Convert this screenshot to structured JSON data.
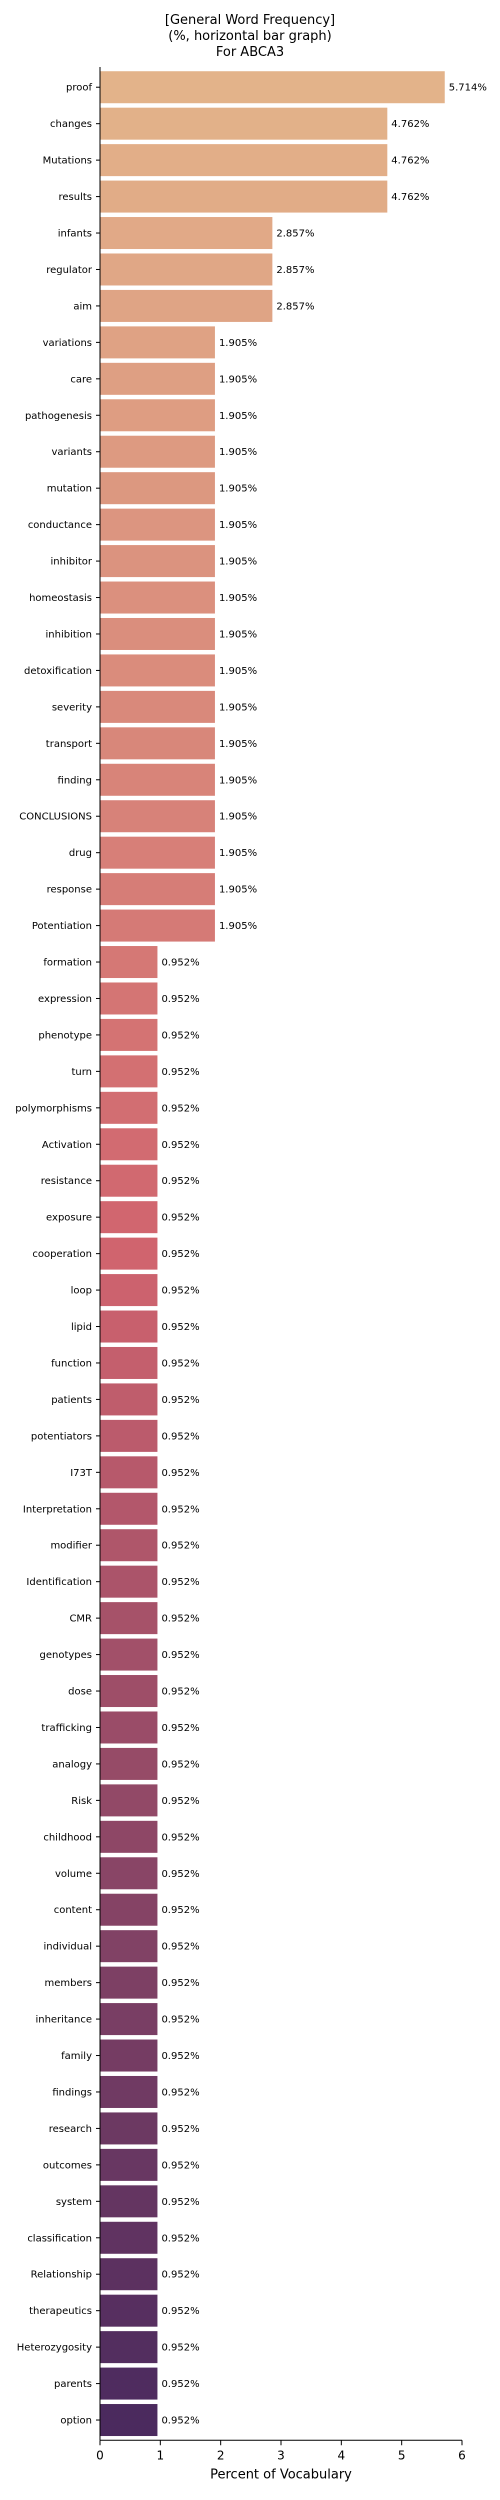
{
  "chart_data": {
    "type": "bar",
    "orientation": "horizontal",
    "title_lines": [
      "[General Word Frequency]",
      "(%, horizontal bar graph)",
      "For ABCA3"
    ],
    "xlabel": "Percent of Vocabulary",
    "ylabel": "",
    "xlim": [
      0,
      6
    ],
    "xticks": [
      0,
      1,
      2,
      3,
      4,
      5,
      6
    ],
    "grid": false,
    "value_label_suffix": "%",
    "colors": {
      "start": "#e3b38a",
      "end": "#4b2a5e"
    },
    "categories": [
      "proof",
      "changes",
      "Mutations",
      "results",
      "infants",
      "regulator",
      "aim",
      "variations",
      "care",
      "pathogenesis",
      "variants",
      "mutation",
      "conductance",
      "inhibitor",
      "homeostasis",
      "inhibition",
      "detoxification",
      "severity",
      "transport",
      "finding",
      "CONCLUSIONS",
      "drug",
      "response",
      "Potentiation",
      "formation",
      "expression",
      "phenotype",
      "turn",
      "polymorphisms",
      "Activation",
      "resistance",
      "exposure",
      "cooperation",
      "loop",
      "lipid",
      "function",
      "patients",
      "potentiators",
      "I73T",
      "Interpretation",
      "modifier",
      "Identification",
      "CMR",
      "genotypes",
      "dose",
      "trafficking",
      "analogy",
      "Risk",
      "childhood",
      "volume",
      "content",
      "individual",
      "members",
      "inheritance",
      "family",
      "findings",
      "research",
      "outcomes",
      "system",
      "classification",
      "Relationship",
      "therapeutics",
      "Heterozygosity",
      "parents",
      "option"
    ],
    "values": [
      5.714,
      4.762,
      4.762,
      4.762,
      2.857,
      2.857,
      2.857,
      1.905,
      1.905,
      1.905,
      1.905,
      1.905,
      1.905,
      1.905,
      1.905,
      1.905,
      1.905,
      1.905,
      1.905,
      1.905,
      1.905,
      1.905,
      1.905,
      1.905,
      0.952,
      0.952,
      0.952,
      0.952,
      0.952,
      0.952,
      0.952,
      0.952,
      0.952,
      0.952,
      0.952,
      0.952,
      0.952,
      0.952,
      0.952,
      0.952,
      0.952,
      0.952,
      0.952,
      0.952,
      0.952,
      0.952,
      0.952,
      0.952,
      0.952,
      0.952,
      0.952,
      0.952,
      0.952,
      0.952,
      0.952,
      0.952,
      0.952,
      0.952,
      0.952,
      0.952,
      0.952,
      0.952,
      0.952,
      0.952,
      0.952
    ],
    "value_labels": [
      "5.714%",
      "4.762%",
      "4.762%",
      "4.762%",
      "2.857%",
      "2.857%",
      "2.857%",
      "1.905%",
      "1.905%",
      "1.905%",
      "1.905%",
      "1.905%",
      "1.905%",
      "1.905%",
      "1.905%",
      "1.905%",
      "1.905%",
      "1.905%",
      "1.905%",
      "1.905%",
      "1.905%",
      "1.905%",
      "1.905%",
      "1.905%",
      "0.952%",
      "0.952%",
      "0.952%",
      "0.952%",
      "0.952%",
      "0.952%",
      "0.952%",
      "0.952%",
      "0.952%",
      "0.952%",
      "0.952%",
      "0.952%",
      "0.952%",
      "0.952%",
      "0.952%",
      "0.952%",
      "0.952%",
      "0.952%",
      "0.952%",
      "0.952%",
      "0.952%",
      "0.952%",
      "0.952%",
      "0.952%",
      "0.952%",
      "0.952%",
      "0.952%",
      "0.952%",
      "0.952%",
      "0.952%",
      "0.952%",
      "0.952%",
      "0.952%",
      "0.952%",
      "0.952%",
      "0.952%",
      "0.952%",
      "0.952%",
      "0.952%",
      "0.952%",
      "0.952%"
    ]
  }
}
